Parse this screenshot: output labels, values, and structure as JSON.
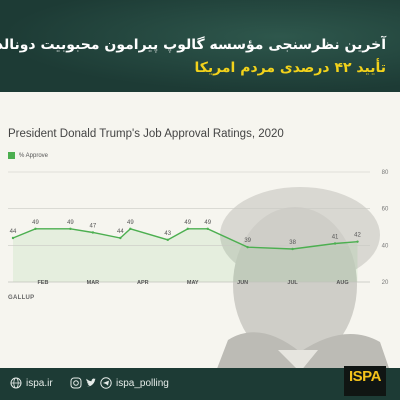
{
  "header": {
    "title_line1": "آخرین نظرسنجی مؤسسه گالوپ پیرامون محبوبیت دونالد ترامپ:",
    "title_line2": "تأیید ۴۲ درصدی مردم امریکا"
  },
  "chart_data": {
    "type": "line",
    "title": "President Donald Trump's Job Approval Ratings, 2020",
    "source": "GALLUP",
    "series": [
      {
        "name": "% Approve",
        "color": "#4caf50",
        "values": [
          44,
          49,
          49,
          47,
          44,
          49,
          43,
          49,
          49,
          39,
          38,
          41,
          42
        ],
        "x_months": [
          1.4,
          1.85,
          2.55,
          3.0,
          3.55,
          3.75,
          4.5,
          4.9,
          5.3,
          6.1,
          7.0,
          7.85,
          8.3
        ]
      }
    ],
    "x_ticks": [
      "FEB",
      "MAR",
      "APR",
      "MAY",
      "JUN",
      "JUL",
      "AUG"
    ],
    "x_tick_months": [
      2,
      3,
      4,
      5,
      6,
      7,
      8
    ],
    "y_ticks": [
      20,
      40,
      60,
      80
    ],
    "ylim": [
      20,
      80
    ],
    "grid": true
  },
  "footer": {
    "website": "ispa.ir",
    "handle": "ispa_polling",
    "logo_text": "ISPA"
  }
}
